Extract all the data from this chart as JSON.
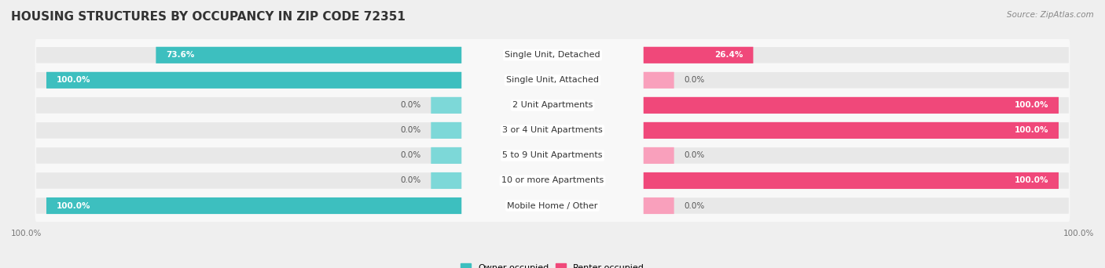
{
  "title": "HOUSING STRUCTURES BY OCCUPANCY IN ZIP CODE 72351",
  "source": "Source: ZipAtlas.com",
  "categories": [
    "Single Unit, Detached",
    "Single Unit, Attached",
    "2 Unit Apartments",
    "3 or 4 Unit Apartments",
    "5 to 9 Unit Apartments",
    "10 or more Apartments",
    "Mobile Home / Other"
  ],
  "owner_values": [
    73.6,
    100.0,
    0.0,
    0.0,
    0.0,
    0.0,
    100.0
  ],
  "renter_values": [
    26.4,
    0.0,
    100.0,
    100.0,
    0.0,
    100.0,
    0.0
  ],
  "owner_color": "#3DBFBF",
  "owner_color_light": "#7DD8D8",
  "renter_color": "#F0487A",
  "renter_color_light": "#F9A0BC",
  "owner_label": "Owner-occupied",
  "renter_label": "Renter-occupied",
  "background_color": "#efefef",
  "bar_background": "#e0e0e0",
  "bar_row_bg": "#f8f8f8",
  "title_fontsize": 11,
  "label_fontsize": 8,
  "value_fontsize": 7.5,
  "source_fontsize": 7.5,
  "legend_fontsize": 8
}
